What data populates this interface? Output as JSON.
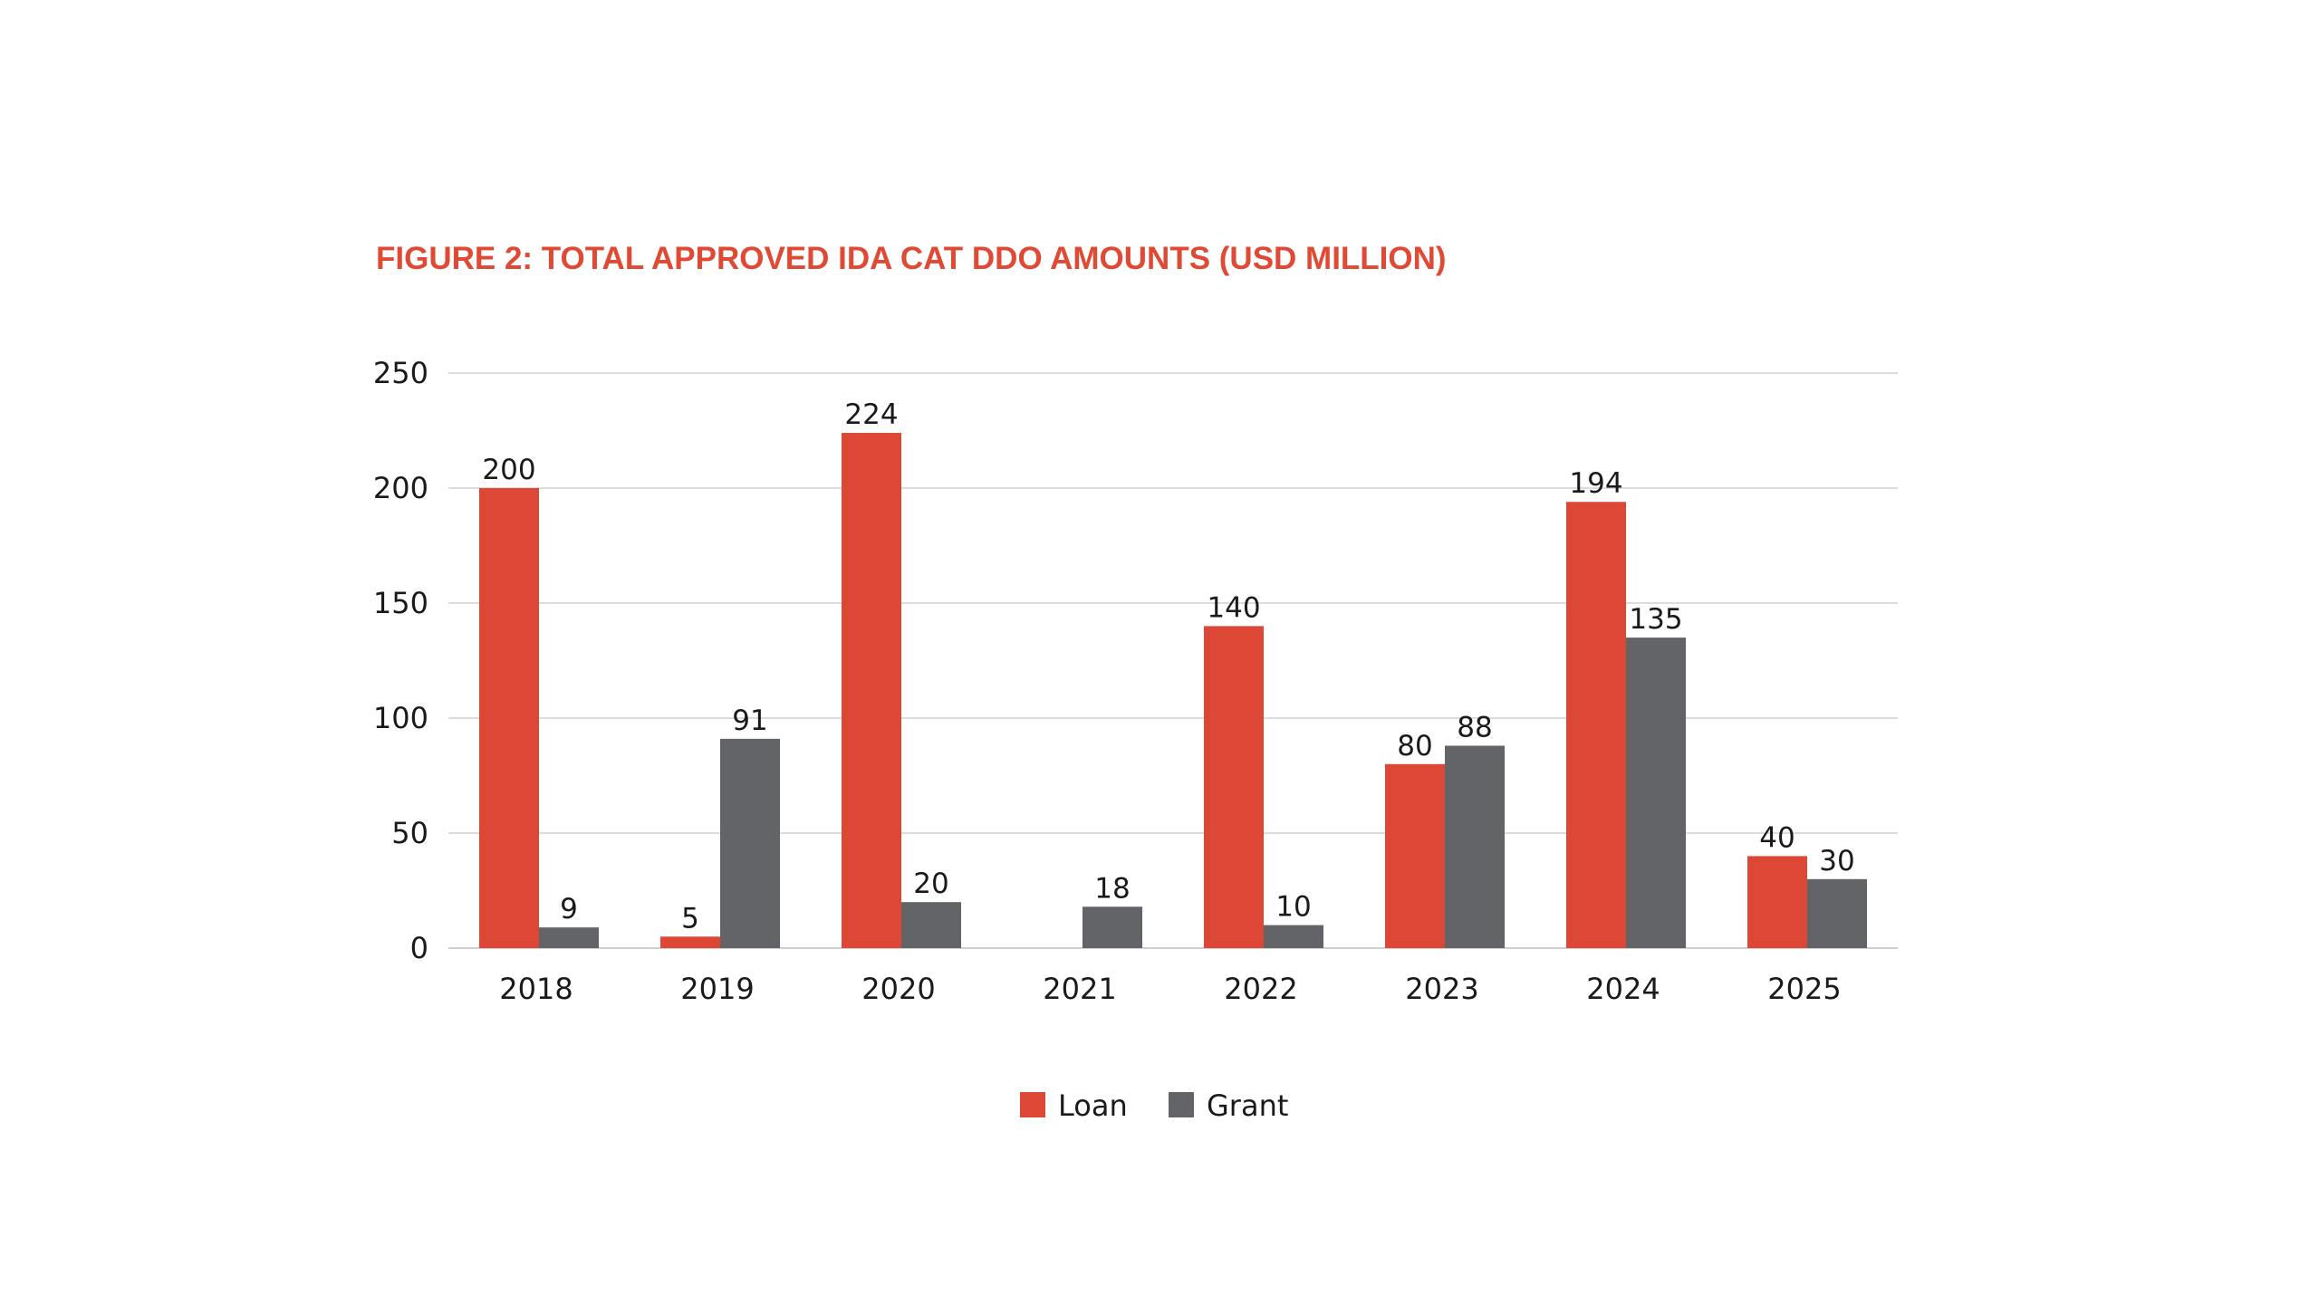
{
  "chart_data": {
    "type": "bar",
    "title": "FIGURE 2: TOTAL APPROVED IDA CAT DDO AMOUNTS (USD MILLION)",
    "xlabel": "",
    "ylabel": "",
    "categories": [
      "2018",
      "2019",
      "2020",
      "2021",
      "2022",
      "2023",
      "2024",
      "2025"
    ],
    "series": [
      {
        "name": "Loan",
        "color": "#dc4736",
        "values": [
          200,
          5,
          224,
          null,
          140,
          80,
          194,
          40
        ],
        "labels": [
          "200",
          "5",
          "224",
          "",
          "140",
          "80",
          "194",
          "40"
        ]
      },
      {
        "name": "Grant",
        "color": "#636467",
        "values": [
          9,
          91,
          20,
          18,
          10,
          88,
          135,
          30
        ],
        "labels": [
          "9",
          "91",
          "20",
          "18",
          "10",
          "88",
          "135",
          "30"
        ]
      }
    ],
    "ylim": [
      0,
      250
    ],
    "yticks": [
      "0",
      "50",
      "100",
      "150",
      "200",
      "250"
    ],
    "grid": true,
    "legend_position": "bottom-center"
  }
}
